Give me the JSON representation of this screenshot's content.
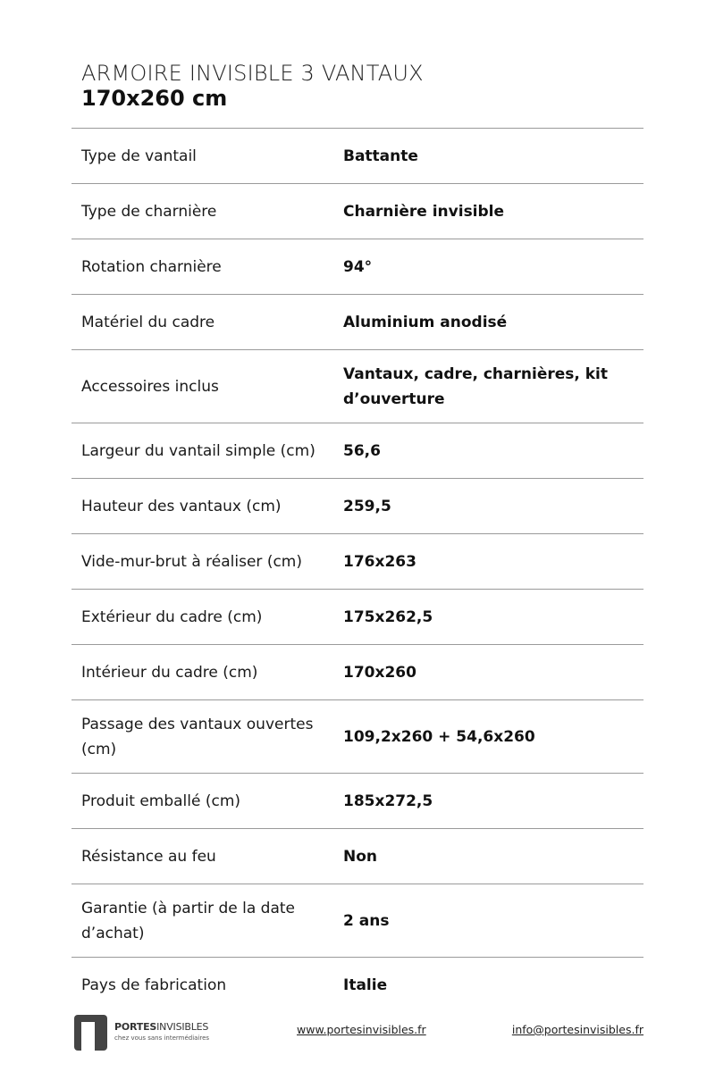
{
  "header": {
    "title": "ARMOIRE INVISIBLE 3 VANTAUX",
    "subtitle": "170x260 cm"
  },
  "specs": [
    {
      "label": "Type de vantail",
      "value": "Battante"
    },
    {
      "label": "Type de charnière",
      "value": "Charnière invisible"
    },
    {
      "label": "Rotation charnière",
      "value": "94°"
    },
    {
      "label": "Matériel du cadre",
      "value": "Aluminium anodisé"
    },
    {
      "label": "Accessoires inclus",
      "value": "Vantaux, cadre, charnières, kit d’ouverture"
    },
    {
      "label": "Largeur du vantail simple (cm)",
      "value": "56,6"
    },
    {
      "label": "Hauteur des vantaux (cm)",
      "value": "259,5"
    },
    {
      "label": "Vide-mur-brut à réaliser (cm)",
      "value": "176x263"
    },
    {
      "label": "Extérieur du cadre (cm)",
      "value": "175x262,5"
    },
    {
      "label": "Intérieur du cadre (cm)",
      "value": "170x260"
    },
    {
      "label": "Passage des vantaux ouvertes (cm)",
      "value": "109,2x260 + 54,6x260"
    },
    {
      "label": "Produit emballé (cm)",
      "value": "185x272,5"
    },
    {
      "label": "Résistance au feu",
      "value": "Non"
    },
    {
      "label": "Garantie (à partir de la date d’achat)",
      "value": "2 ans"
    },
    {
      "label": "Pays de fabrication",
      "value": "Italie"
    }
  ],
  "footer": {
    "logo": {
      "name_bold": "PORTES",
      "name_light": "INVISIBLES",
      "tagline": "chez vous sans intermédiaires"
    },
    "website": "www.portesinvisibles.fr",
    "email": "info@portesinvisibles.fr"
  }
}
